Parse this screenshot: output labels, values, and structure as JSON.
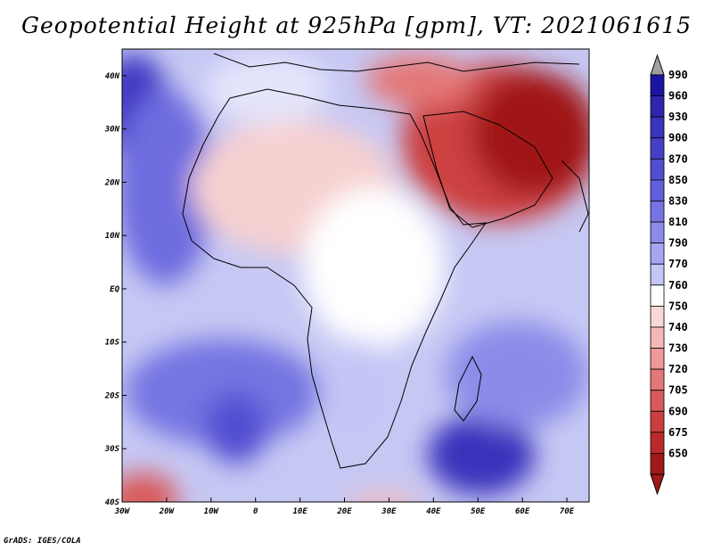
{
  "title": "Geopotential Height at 925hPa [gpm], VT: 2021061615",
  "credit": "GrADS: IGES/COLA",
  "colors": {
    "low_extreme": "#a01818",
    "high_extreme": "#a0a0a0",
    "ocean_field": "#c6c8f4",
    "coast": "#000000"
  },
  "axes": {
    "lon_ticks": [
      "30W",
      "20W",
      "10W",
      "0",
      "10E",
      "20E",
      "30E",
      "40E",
      "50E",
      "60E",
      "70E"
    ],
    "lat_ticks": [
      "40N",
      "30N",
      "20N",
      "10N",
      "EQ",
      "10S",
      "20S",
      "30S",
      "40S"
    ],
    "lon_range": [
      -30,
      75
    ],
    "lat_range": [
      -40,
      45
    ]
  },
  "colorbar": {
    "levels": [
      "990",
      "960",
      "930",
      "900",
      "870",
      "850",
      "830",
      "810",
      "790",
      "770",
      "760",
      "750",
      "740",
      "730",
      "720",
      "705",
      "690",
      "675",
      "650"
    ],
    "colors": [
      "#1a14a0",
      "#2e26ae",
      "#3a33bc",
      "#4640c8",
      "#524ed2",
      "#625fda",
      "#7674e2",
      "#8c8be9",
      "#a6a7f0",
      "#c4c6f6",
      "#ffffff",
      "#fbd8d8",
      "#f5b8b8",
      "#ee9898",
      "#e47878",
      "#d95a5a",
      "#cc3f3f",
      "#bb2a2a",
      "#a01818"
    ],
    "top_arrow_color": "#a0a0a0",
    "bottom_arrow_color": "#a01818"
  }
}
